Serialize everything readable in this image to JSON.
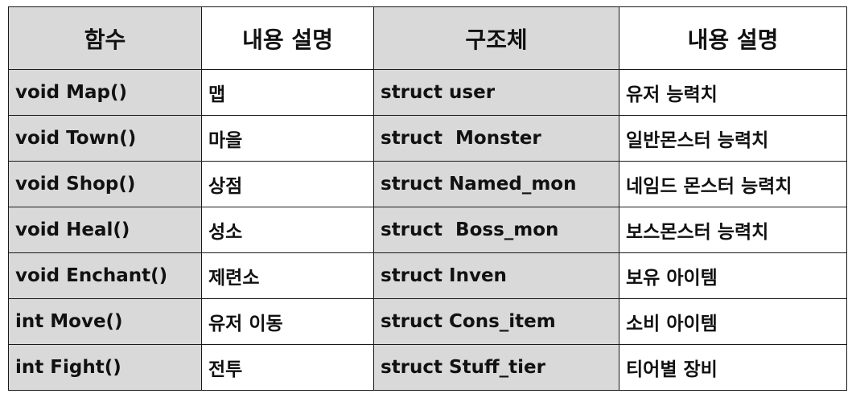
{
  "header": [
    "함수",
    "내용 설명",
    "구조체",
    "내용 설명"
  ],
  "rows": [
    [
      "void Map()",
      "맵",
      "struct user",
      "유저 능력치"
    ],
    [
      "void Town()",
      "마을",
      "struct  Monster",
      "일반몬스터 능력치"
    ],
    [
      "void Shop()",
      "상점",
      "struct Named_mon",
      "네임드 몬스터 능력치"
    ],
    [
      "void Heal()",
      "성소",
      "struct  Boss_mon",
      "보스몬스터 능력치"
    ],
    [
      "void Enchant()",
      "제련소",
      "struct Inven",
      "보유 아이템"
    ],
    [
      "int Move()",
      "유저 이동",
      "struct Cons_item",
      "소비 아이템"
    ],
    [
      "int Fight()",
      "전투",
      "struct Stuff_tier",
      "티어별 장비"
    ]
  ],
  "colors": {
    "shaded": "#d9d9d9",
    "plain": "#ffffff",
    "border": "#1a1a1a"
  }
}
